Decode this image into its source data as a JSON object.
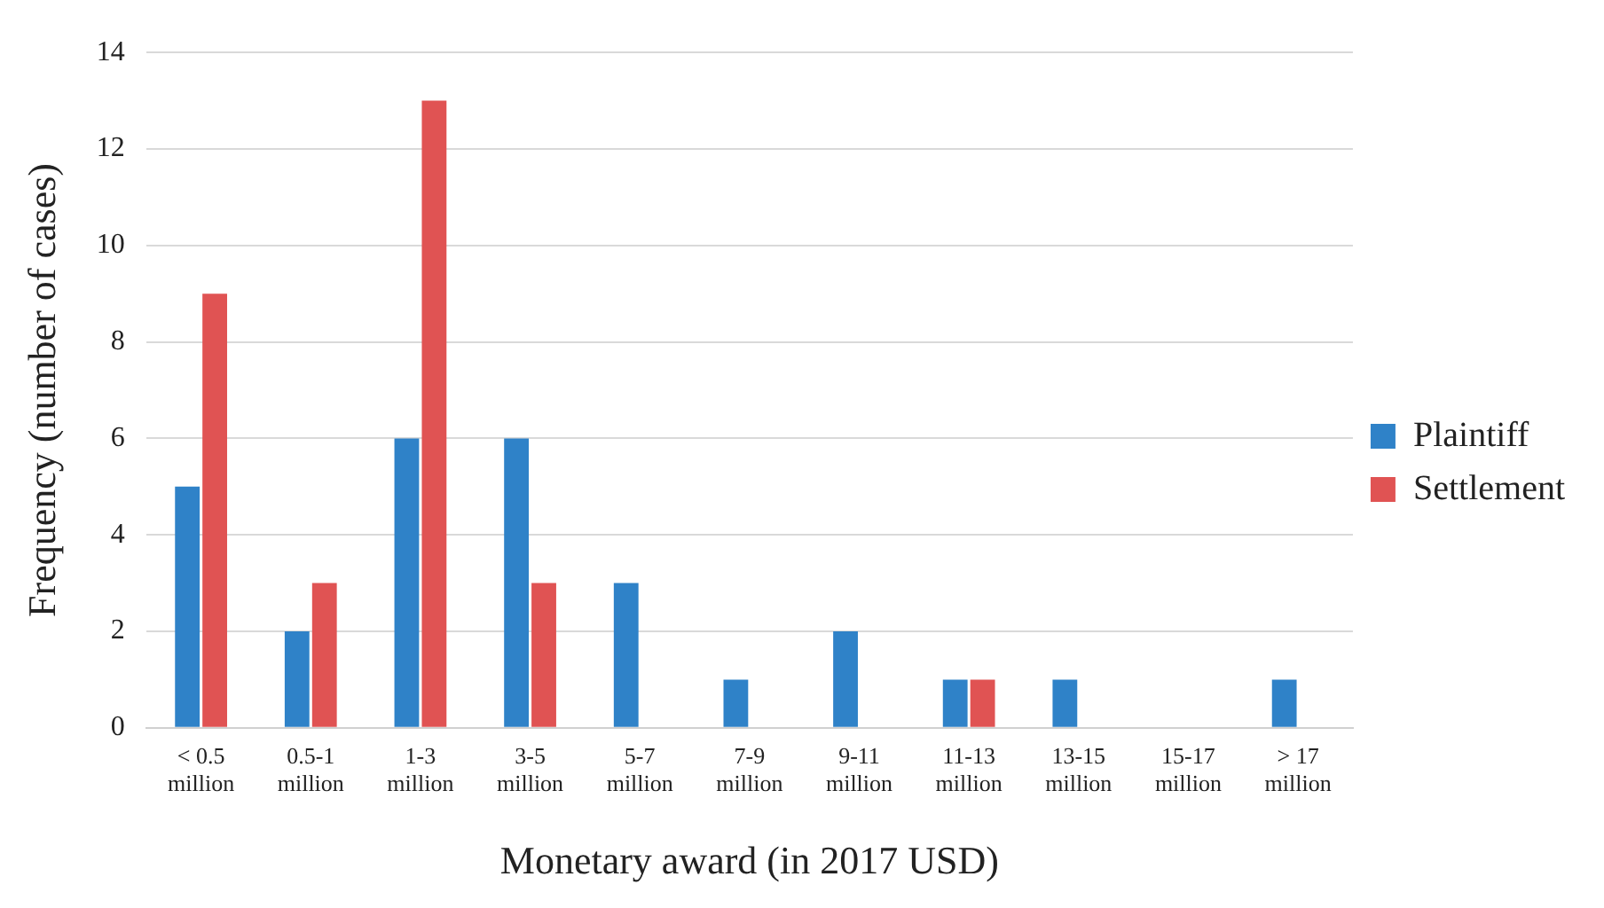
{
  "chart_data": {
    "type": "bar",
    "xlabel": "Monetary award (in 2017 USD)",
    "ylabel": "Frequency (number of cases)",
    "categories": [
      "< 0.5 million",
      "0.5-1 million",
      "1-3 million",
      "3-5 million",
      "5-7 million",
      "7-9 million",
      "9-11 million",
      "11-13 million",
      "13-15 million",
      "15-17 million",
      "> 17 million"
    ],
    "series": [
      {
        "name": "Plaintiff",
        "color": "#2f82c8",
        "values": [
          5,
          2,
          6,
          6,
          3,
          1,
          2,
          1,
          1,
          0,
          1
        ]
      },
      {
        "name": "Settlement",
        "color": "#e05353",
        "values": [
          9,
          3,
          13,
          3,
          0,
          0,
          0,
          1,
          0,
          0,
          0
        ]
      }
    ],
    "ylim": [
      0,
      14
    ],
    "yticks": [
      0,
      2,
      4,
      6,
      8,
      10,
      12,
      14
    ],
    "grid": "y",
    "legend": "right"
  }
}
